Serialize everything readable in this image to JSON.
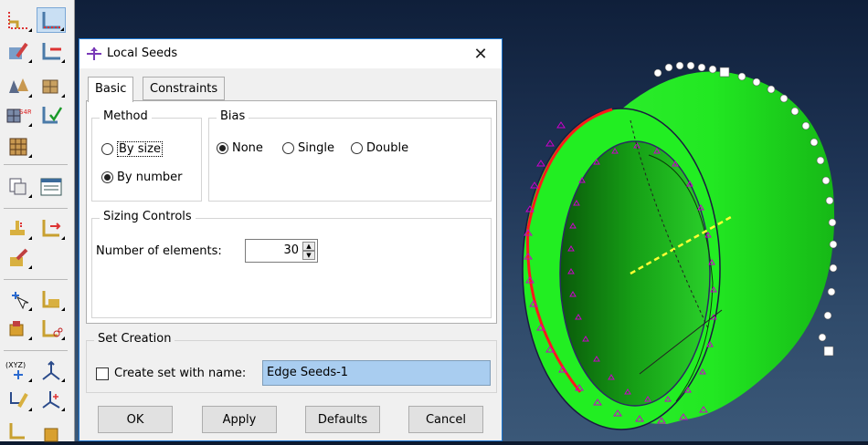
{
  "dialog": {
    "title": "Local Seeds",
    "tabs": [
      {
        "label": "Basic",
        "active": true
      },
      {
        "label": "Constraints",
        "active": false
      }
    ],
    "method": {
      "legend": "Method",
      "options": [
        {
          "label": "By size",
          "selected": false
        },
        {
          "label": "By number",
          "selected": true
        }
      ]
    },
    "bias": {
      "legend": "Bias",
      "options": [
        {
          "label": "None",
          "selected": true
        },
        {
          "label": "Single",
          "selected": false
        },
        {
          "label": "Double",
          "selected": false
        }
      ]
    },
    "sizing": {
      "legend": "Sizing Controls",
      "number_label": "Number of elements:",
      "number_value": "30"
    },
    "set_creation": {
      "legend": "Set Creation",
      "checkbox_label": "Create set with name:",
      "checked": false,
      "set_name": "Edge Seeds-1"
    },
    "buttons": {
      "ok": "OK",
      "apply": "Apply",
      "defaults": "Defaults",
      "cancel": "Cancel"
    }
  },
  "toolbar_icons": [
    "seed-part-icon",
    "seed-edge-icon",
    "delete-seeds-icon",
    "delete-edge-seeds-icon",
    "mesh-part-icon",
    "mesh-region-icon",
    "element-type-icon",
    "verify-mesh-icon",
    "mesh-controls-icon",
    "query-icon",
    "mesh-stats-icon",
    "edit-mesh-icon",
    "partition-icon",
    "virtual-topology-icon",
    "datum-point-icon",
    "datum-plane-icon",
    "repair-icon",
    "delete-feature-icon",
    "datum-xyz-icon",
    "datum-csys-icon",
    "datum-axis-icon",
    "datum-rect-csys-icon",
    "create-display-group-icon",
    "replace-icon"
  ],
  "colors": {
    "part_face": "#22ee22",
    "seed_marker": "#cc00cc",
    "selected_edge": "#ff1a1a",
    "dialog_accent": "#1c76d2",
    "textfield_bg": "#a9cdf0",
    "viewport_top": "#0f1f3a",
    "viewport_bottom": "#3b5878"
  }
}
